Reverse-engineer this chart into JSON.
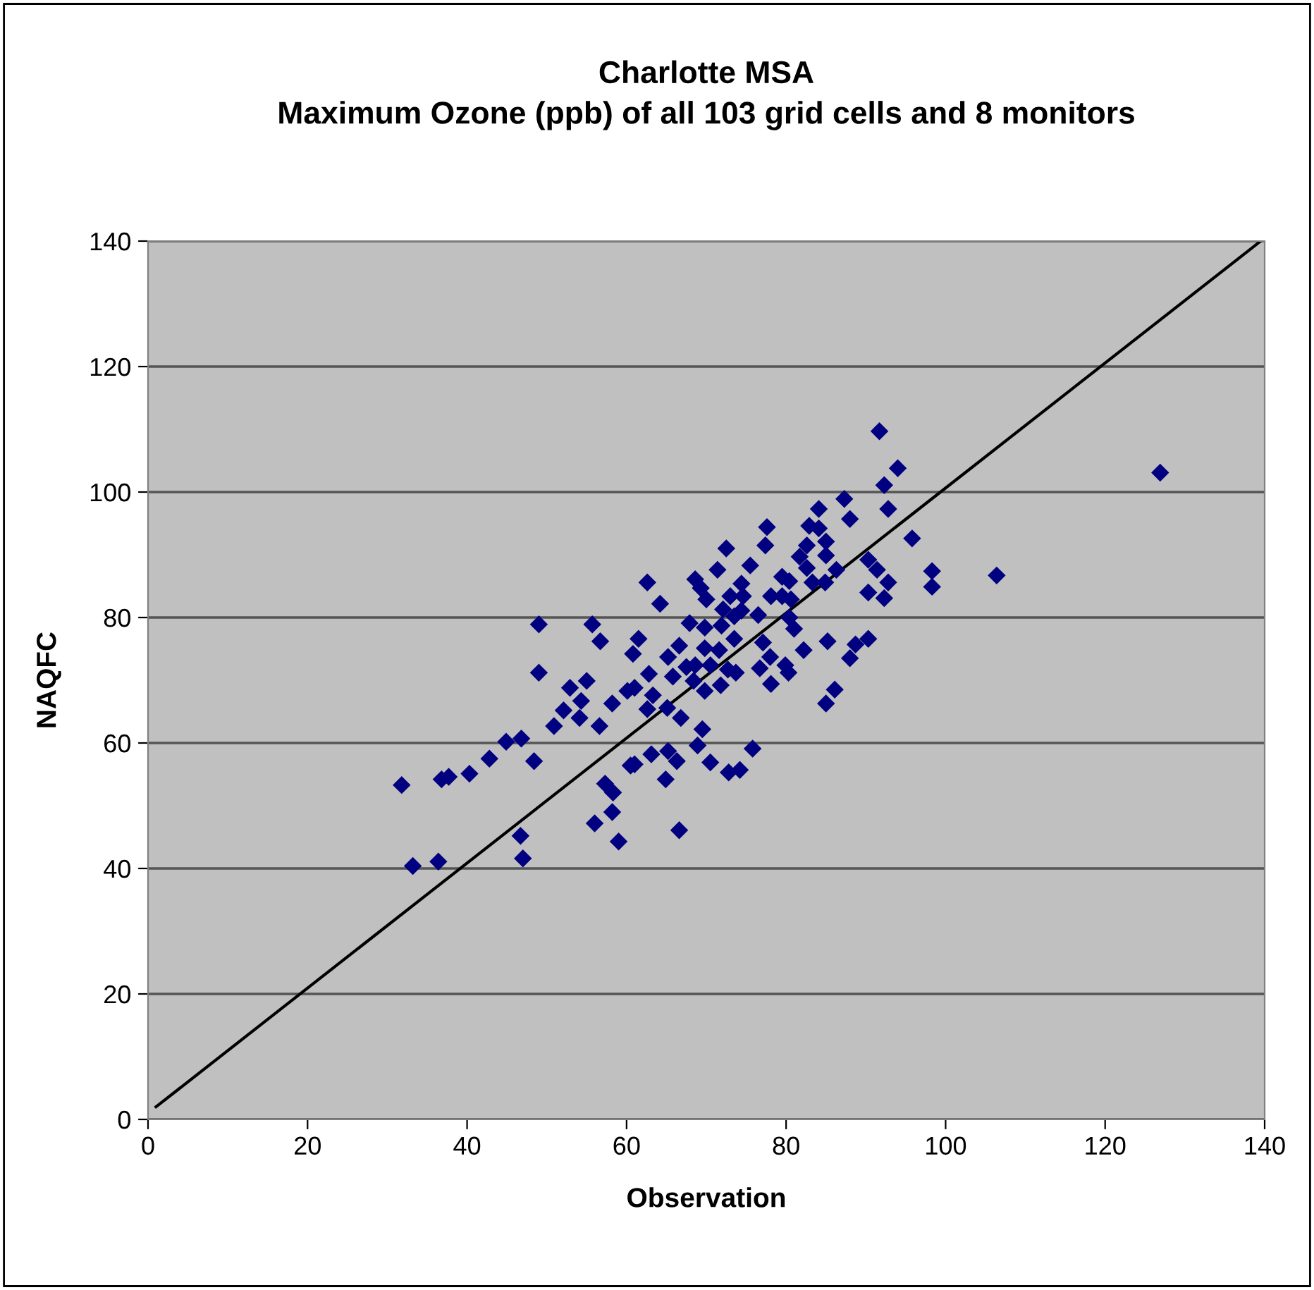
{
  "chart_data": {
    "type": "scatter",
    "title": "Charlotte MSA\nMaximum Ozone (ppb) of all 103 grid cells and 8 monitors",
    "xlabel": "Observation",
    "ylabel": "NAQFC",
    "xlim": [
      0,
      140
    ],
    "ylim": [
      0,
      140
    ],
    "xticks": [
      0,
      20,
      40,
      60,
      80,
      100,
      120,
      140
    ],
    "yticks": [
      0,
      20,
      40,
      60,
      80,
      100,
      120,
      140
    ],
    "grid": "y",
    "marker": "diamond",
    "legend": false,
    "series": [
      {
        "color": "#000080",
        "x": [
          91.7,
          94.0,
          92.3,
          92.8,
          95.8,
          87.3,
          88.0,
          84.1,
          82.9,
          84.1,
          77.6,
          77.4,
          72.5,
          71.4,
          75.5,
          62.6,
          64.2,
          68.6,
          69.3,
          70.0,
          82.6,
          81.7,
          85.0,
          85.0,
          82.6,
          83.3,
          86.3,
          84.9,
          90.3,
          91.4,
          92.8,
          90.3,
          92.3,
          79.5,
          80.4,
          78.1,
          79.5,
          80.6,
          74.4,
          73.0,
          74.6,
          72.1,
          74.4,
          73.5,
          76.5,
          80.4,
          81.0,
          67.9,
          69.8,
          71.9,
          61.5,
          85.2,
          88.7,
          90.3,
          88.0,
          82.2,
          77.1,
          73.5,
          71.6,
          66.6,
          65.2,
          69.8,
          78.0,
          76.7,
          79.9,
          80.3,
          68.6,
          67.5,
          70.5,
          72.7,
          73.7,
          62.8,
          65.8,
          68.4,
          78.1,
          86.1,
          63.3,
          62.6,
          65.1,
          66.8,
          69.5,
          69.8,
          71.8,
          85.0,
          63.1,
          65.2,
          66.3,
          68.9,
          70.5,
          72.8,
          74.2,
          75.8,
          64.9,
          66.6,
          61.0,
          98.3,
          98.3,
          106.4,
          126.9,
          49.0,
          55.7,
          56.7,
          60.8,
          49.0,
          52.9,
          55.0,
          54.3,
          52.1,
          54.1,
          50.9,
          56.6,
          58.2,
          60.1,
          61.0,
          44.9,
          46.8,
          42.8,
          48.4,
          40.3,
          36.8,
          37.7,
          31.8,
          60.5,
          57.3,
          58.3,
          58.2,
          56.0,
          59.0,
          46.7,
          47.0,
          33.2,
          36.4
        ],
        "values": [
          109.7,
          103.8,
          101.1,
          97.3,
          92.6,
          98.9,
          95.7,
          97.3,
          94.6,
          94.2,
          94.4,
          91.5,
          91.0,
          87.6,
          88.3,
          85.6,
          82.2,
          86.1,
          84.7,
          82.9,
          91.5,
          89.7,
          92.1,
          89.9,
          87.9,
          85.6,
          87.6,
          85.6,
          89.2,
          87.6,
          85.6,
          84.0,
          83.1,
          86.5,
          85.8,
          83.4,
          83.4,
          82.9,
          85.4,
          83.4,
          83.4,
          81.3,
          81.1,
          80.2,
          80.4,
          80.0,
          78.2,
          79.1,
          78.4,
          78.7,
          76.6,
          76.2,
          75.7,
          76.6,
          73.5,
          74.8,
          76.0,
          76.6,
          74.8,
          75.5,
          73.7,
          75.1,
          73.7,
          71.9,
          72.4,
          71.2,
          72.4,
          72.1,
          72.4,
          71.7,
          71.2,
          71.0,
          70.6,
          69.9,
          69.4,
          68.5,
          67.6,
          65.4,
          65.6,
          64.0,
          62.2,
          68.3,
          69.2,
          66.3,
          58.2,
          58.7,
          57.1,
          59.6,
          56.9,
          55.3,
          55.7,
          59.1,
          54.2,
          46.1,
          56.6,
          87.4,
          84.9,
          86.7,
          103.1,
          78.9,
          78.9,
          76.2,
          74.2,
          71.2,
          68.8,
          69.9,
          66.7,
          65.2,
          64.0,
          62.7,
          62.7,
          66.3,
          68.3,
          68.8,
          60.2,
          60.7,
          57.5,
          57.1,
          55.1,
          54.2,
          54.6,
          53.3,
          56.4,
          53.5,
          52.1,
          49.0,
          47.2,
          44.3,
          45.2,
          41.6,
          40.4,
          41.1
        ]
      },
      {
        "type": "line",
        "color": "#000000",
        "marker": "none",
        "x": [
          1,
          139.5
        ],
        "values": [
          2,
          140
        ]
      }
    ]
  }
}
